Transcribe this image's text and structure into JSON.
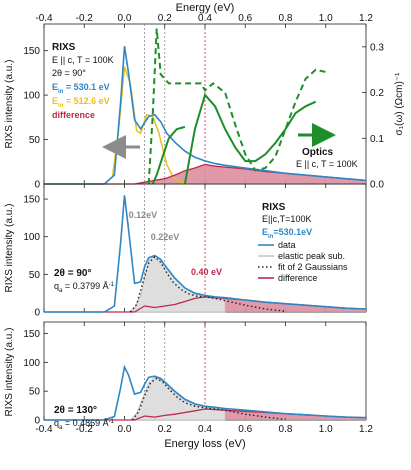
{
  "chart_data": {
    "type": "line",
    "top_axis_label": "Energy (eV)",
    "top_ticks": [
      "-0.4",
      "-0.2",
      "0.0",
      "0.2",
      "0.4",
      "0.6",
      "0.8",
      "1.0",
      "1.2"
    ],
    "xlabel": "Energy loss (eV)",
    "x_ticks": [
      "-0.4",
      "-0.2",
      "0.0",
      "0.2",
      "0.4",
      "0.6",
      "0.8",
      "1.0",
      "1.2"
    ],
    "xlim": [
      -0.4,
      1.2
    ],
    "ylabel_left": "RIXS intensity (a.u.)",
    "ylabel_right": "σ₁(ω) (Ωcm)⁻¹",
    "vlines": [
      {
        "x": 0.1,
        "color": "#888888"
      },
      {
        "x": 0.2,
        "color": "#888888"
      },
      {
        "x": 0.4,
        "color": "#c0284a"
      }
    ],
    "colors": {
      "data": "#2f86c4",
      "e512": "#e8c020",
      "difference": "#c0284a",
      "difference_fill": "#dc8ea0",
      "optics": "#1e8e2a",
      "elastic_fill": "#dedede"
    },
    "panels": [
      {
        "id": "top",
        "ylim": [
          0,
          180
        ],
        "y_ticks": [
          "0",
          "50",
          "100",
          "150"
        ],
        "right_ylim": [
          0,
          0.35
        ],
        "right_ticks": [
          "0.0",
          "0.1",
          "0.2",
          "0.3"
        ],
        "legend": {
          "title": "RIXS",
          "line1": "E || c, T = 100K",
          "line2": "2θ = 90°",
          "ein1": "E",
          "ein1_sub": "in",
          "ein1_val": " = 530.1 eV",
          "ein2": "E",
          "ein2_sub": "in",
          "ein2_val": " = 512.6 eV",
          "diff": "difference"
        },
        "optics_label": {
          "title": "Optics",
          "line": "E || c, T = 100K"
        },
        "series": [
          {
            "key": "data",
            "x": [
              -0.4,
              -0.2,
              -0.1,
              -0.05,
              -0.02,
              0.0,
              0.02,
              0.05,
              0.08,
              0.12,
              0.15,
              0.18,
              0.21,
              0.25,
              0.3,
              0.35,
              0.4,
              0.45,
              0.5,
              0.6,
              0.7,
              0.8,
              0.9,
              1.0,
              1.1,
              1.2
            ],
            "y": [
              0,
              0,
              0,
              10,
              90,
              155,
              125,
              72,
              62,
              76,
              78,
              70,
              57,
              47,
              37,
              30,
              26,
              23,
              21,
              18,
              15,
              12,
              10,
              8,
              6,
              4
            ]
          },
          {
            "key": "e512",
            "x": [
              -0.4,
              -0.2,
              -0.1,
              -0.06,
              -0.03,
              0.0,
              0.03,
              0.06,
              0.08,
              0.11,
              0.14,
              0.17,
              0.19,
              0.21,
              0.24,
              0.28,
              0.32
            ],
            "y": [
              0,
              0,
              0,
              8,
              60,
              132,
              112,
              60,
              57,
              78,
              76,
              58,
              40,
              22,
              8,
              2,
              0
            ]
          },
          {
            "key": "difference",
            "x": [
              -0.4,
              0.0,
              0.05,
              0.1,
              0.15,
              0.2,
              0.25,
              0.3,
              0.35,
              0.4,
              0.45,
              0.5,
              0.6,
              0.7,
              0.8,
              0.9,
              1.0,
              1.1,
              1.2
            ],
            "y": [
              0,
              0,
              0,
              2,
              4,
              6,
              10,
              15,
              18,
              22,
              20,
              19,
              17,
              14,
              12,
              10,
              8,
              6,
              4
            ]
          },
          {
            "key": "optics_solid",
            "axis": "right",
            "x": [
              0.3,
              0.35,
              0.4,
              0.45,
              0.5,
              0.55,
              0.6,
              0.65,
              0.7,
              0.75,
              0.8,
              0.85,
              0.9,
              0.95
            ],
            "y": [
              0.0,
              0.12,
              0.195,
              0.17,
              0.12,
              0.08,
              0.05,
              0.05,
              0.065,
              0.09,
              0.12,
              0.155,
              0.17,
              0.18
            ]
          },
          {
            "key": "optics_solid_left",
            "axis": "right",
            "x": [
              0.14,
              0.16,
              0.19,
              0.22,
              0.26,
              0.3
            ],
            "y": [
              0.0,
              0.02,
              0.06,
              0.1,
              0.12,
              0.125
            ]
          },
          {
            "key": "optics_dashed",
            "axis": "right",
            "x": [
              0.12,
              0.14,
              0.16,
              0.18,
              0.22,
              0.26,
              0.3,
              0.34,
              0.38,
              0.4,
              0.44,
              0.5,
              0.55,
              0.6,
              0.65,
              0.7,
              0.75,
              0.8,
              0.85,
              0.9,
              0.95,
              1.0
            ],
            "y": [
              0.0,
              0.15,
              0.34,
              0.24,
              0.22,
              0.22,
              0.22,
              0.22,
              0.22,
              0.205,
              0.22,
              0.2,
              0.13,
              0.065,
              0.03,
              0.035,
              0.06,
              0.12,
              0.18,
              0.23,
              0.25,
              0.245
            ]
          }
        ]
      },
      {
        "id": "middle",
        "ylim": [
          0,
          170
        ],
        "y_ticks": [
          "0",
          "50",
          "100",
          "150"
        ],
        "legend": {
          "title": "RIXS",
          "line1": "E||c,T=100K",
          "ein": "E",
          "ein_sub": "in",
          "ein_val": "=530.1eV",
          "items": [
            "data",
            "elastic peak sub.",
            "fit of 2 Gaussians",
            "difference"
          ]
        },
        "annotations": [
          "0.12eV",
          "0.22eV",
          "0.40 eV"
        ],
        "angle_label": "2θ = 90°",
        "q_label": "q",
        "q_sub": "a",
        "q_val": " = 0.3799 Å",
        "q_sup": "-1",
        "series": [
          {
            "key": "data",
            "x": [
              -0.4,
              -0.2,
              -0.1,
              -0.05,
              -0.02,
              0.0,
              0.02,
              0.05,
              0.08,
              0.1,
              0.12,
              0.15,
              0.18,
              0.2,
              0.25,
              0.3,
              0.35,
              0.4,
              0.45,
              0.5,
              0.6,
              0.7,
              0.8,
              0.9,
              1.0,
              1.1,
              1.2
            ],
            "y": [
              0,
              0,
              0,
              8,
              90,
              155,
              110,
              38,
              40,
              60,
              72,
              75,
              70,
              62,
              45,
              32,
              25,
              22,
              20,
              19,
              16,
              13,
              11,
              9,
              7,
              5,
              4
            ]
          },
          {
            "key": "elastic_sub",
            "x": [
              0.02,
              0.05,
              0.08,
              0.1,
              0.12,
              0.15,
              0.18,
              0.2,
              0.25,
              0.3,
              0.35,
              0.4,
              0.45,
              0.5
            ],
            "y": [
              0,
              5,
              22,
              45,
              68,
              75,
              70,
              62,
              45,
              32,
              24,
              20,
              18,
              17
            ]
          },
          {
            "key": "fit",
            "x": [
              0.03,
              0.06,
              0.09,
              0.12,
              0.15,
              0.18,
              0.21,
              0.24,
              0.28,
              0.32,
              0.36,
              0.4,
              0.45,
              0.5,
              0.6,
              0.7,
              0.8
            ],
            "y": [
              0,
              10,
              38,
              65,
              73,
              66,
              52,
              40,
              30,
              24,
              21,
              20,
              18,
              15,
              9,
              4,
              1
            ]
          },
          {
            "key": "difference",
            "x": [
              -0.4,
              0.0,
              0.05,
              0.1,
              0.15,
              0.2,
              0.25,
              0.3,
              0.35,
              0.4,
              0.45,
              0.5,
              0.6,
              0.7,
              0.8,
              0.9,
              1.0,
              1.1,
              1.2
            ],
            "y": [
              0,
              0,
              0,
              8,
              6,
              8,
              10,
              14,
              18,
              20,
              19,
              18,
              16,
              13,
              11,
              9,
              7,
              5,
              4
            ]
          }
        ]
      },
      {
        "id": "bottom",
        "ylim": [
          0,
          170
        ],
        "y_ticks": [
          "0",
          "50",
          "100",
          "150"
        ],
        "angle_label": "2θ = 130°",
        "q_label": "q",
        "q_sub": "a",
        "q_val": " = 0.4869 Å",
        "q_sup": "-1",
        "series": [
          {
            "key": "data",
            "x": [
              -0.4,
              -0.2,
              -0.1,
              -0.05,
              -0.02,
              0.0,
              0.02,
              0.05,
              0.08,
              0.1,
              0.12,
              0.15,
              0.18,
              0.2,
              0.25,
              0.3,
              0.35,
              0.4,
              0.45,
              0.5,
              0.6,
              0.7,
              0.8,
              0.9,
              1.0,
              1.1,
              1.2
            ],
            "y": [
              0,
              0,
              0,
              6,
              55,
              92,
              78,
              45,
              48,
              62,
              74,
              76,
              72,
              66,
              50,
              36,
              28,
              24,
              22,
              20,
              17,
              14,
              11,
              9,
              7,
              5,
              4
            ]
          },
          {
            "key": "elastic_sub",
            "x": [
              0.03,
              0.06,
              0.09,
              0.12,
              0.15,
              0.18,
              0.2,
              0.25,
              0.3,
              0.35,
              0.4,
              0.45,
              0.5
            ],
            "y": [
              0,
              12,
              38,
              65,
              74,
              70,
              64,
              48,
              34,
              26,
              22,
              20,
              18
            ]
          },
          {
            "key": "fit",
            "x": [
              0.04,
              0.07,
              0.1,
              0.13,
              0.16,
              0.19,
              0.22,
              0.26,
              0.3,
              0.35,
              0.4,
              0.45,
              0.5,
              0.6,
              0.7,
              0.8
            ],
            "y": [
              0,
              14,
              42,
              65,
              72,
              66,
              54,
              40,
              30,
              24,
              21,
              19,
              17,
              10,
              5,
              1
            ]
          },
          {
            "key": "difference",
            "x": [
              -0.4,
              0.0,
              0.05,
              0.1,
              0.15,
              0.2,
              0.25,
              0.3,
              0.35,
              0.4,
              0.45,
              0.5,
              0.6,
              0.7,
              0.8,
              0.9,
              1.0,
              1.1,
              1.2
            ],
            "y": [
              0,
              0,
              0,
              7,
              5,
              8,
              10,
              13,
              16,
              19,
              18,
              17,
              15,
              13,
              11,
              9,
              7,
              5,
              4
            ]
          }
        ]
      }
    ]
  }
}
